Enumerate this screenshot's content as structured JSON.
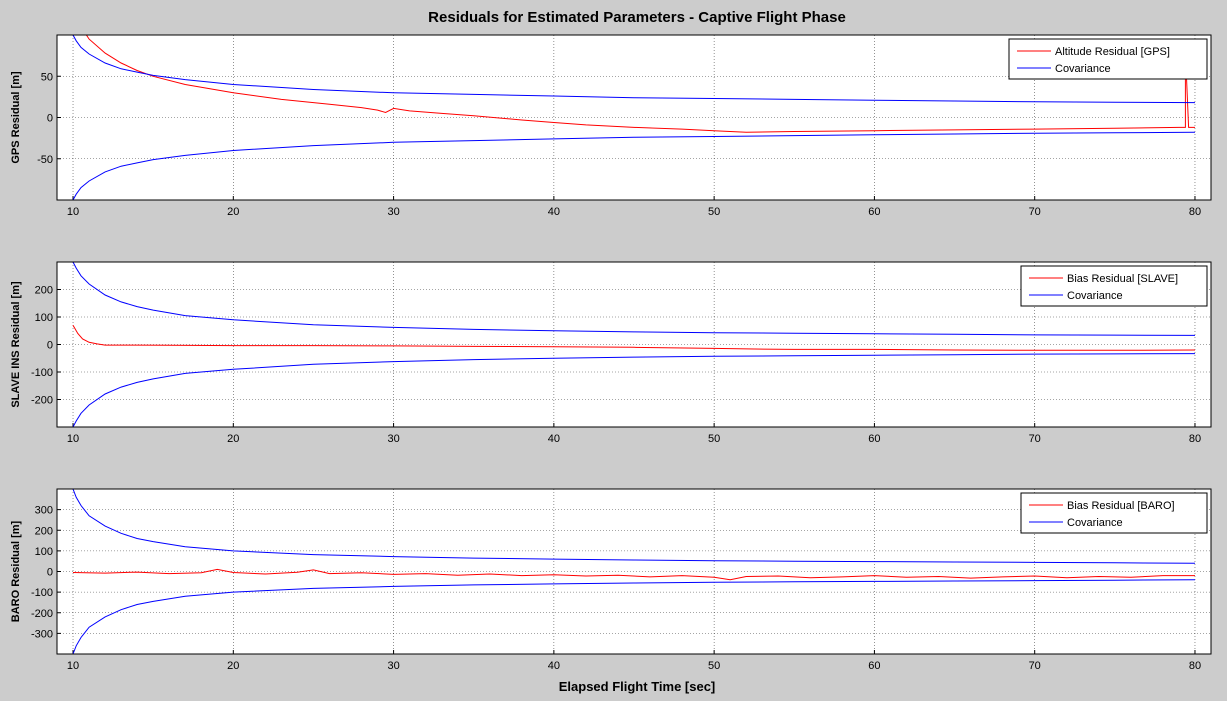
{
  "figure": {
    "title": "Residuals for Estimated Parameters - Captive Flight Phase",
    "xlabel": "Elapsed Flight Time [sec]"
  },
  "colors": {
    "background": "#cccccc",
    "residual": "#ff0000",
    "covariance": "#0000ff",
    "grid": "#b0b0b0"
  },
  "chart_data": [
    {
      "type": "line",
      "ylabel": "GPS Residual [m]",
      "xlim": [
        9,
        81
      ],
      "ylim": [
        -100,
        100
      ],
      "xticks": [
        10,
        20,
        30,
        40,
        50,
        60,
        70,
        80
      ],
      "yticks": [
        -50,
        0,
        50
      ],
      "grid": true,
      "legend_position": "top-right",
      "series": [
        {
          "name": "Altitude Residual [GPS]",
          "color": "#ff0000",
          "x": [
            10,
            10.5,
            11,
            12,
            13,
            14,
            15,
            17,
            20,
            23,
            26,
            28,
            29,
            29.5,
            30,
            31,
            33,
            35,
            38,
            40,
            42,
            45,
            48,
            50,
            52,
            55,
            60,
            65,
            70,
            75,
            79,
            79.4,
            79.4,
            79.6,
            80
          ],
          "y": [
            130,
            110,
            95,
            78,
            66,
            57,
            50,
            40,
            30,
            22,
            16,
            12,
            9,
            6,
            11,
            8,
            5,
            2,
            -3,
            -6,
            -9,
            -12,
            -14,
            -16,
            -18,
            -17,
            -16,
            -15,
            -14,
            -13,
            -12,
            -12,
            80,
            -12,
            -12
          ]
        },
        {
          "name": "Covariance",
          "color": "#0000ff",
          "x": [
            10,
            10.2,
            10.5,
            11,
            12,
            13,
            14,
            15,
            17,
            20,
            25,
            30,
            35,
            40,
            45,
            50,
            55,
            60,
            65,
            70,
            75,
            80
          ],
          "y": [
            100,
            93,
            85,
            77,
            66,
            59,
            55,
            51,
            46,
            40,
            34,
            30,
            28,
            26,
            24,
            23,
            22,
            21,
            20,
            19,
            18.5,
            18
          ]
        },
        {
          "name": "",
          "color": "#0000ff",
          "x": [
            10,
            10.2,
            10.5,
            11,
            12,
            13,
            14,
            15,
            17,
            20,
            25,
            30,
            35,
            40,
            45,
            50,
            55,
            60,
            65,
            70,
            75,
            80
          ],
          "y": [
            -100,
            -93,
            -85,
            -77,
            -66,
            -59,
            -55,
            -51,
            -46,
            -40,
            -34,
            -30,
            -28,
            -26,
            -24,
            -23,
            -22,
            -21,
            -20,
            -19,
            -18.5,
            -18
          ]
        }
      ]
    },
    {
      "type": "line",
      "ylabel": "SLAVE INS Residual [m]",
      "xlim": [
        9,
        81
      ],
      "ylim": [
        -300,
        300
      ],
      "xticks": [
        10,
        20,
        30,
        40,
        50,
        60,
        70,
        80
      ],
      "yticks": [
        -200,
        -100,
        0,
        100,
        200
      ],
      "grid": true,
      "legend_position": "top-right",
      "series": [
        {
          "name": "Bias Residual [SLAVE]",
          "color": "#ff0000",
          "x": [
            10,
            10.3,
            10.6,
            11,
            11.5,
            12,
            14,
            16,
            20,
            25,
            30,
            35,
            40,
            45,
            50,
            52,
            55,
            60,
            65,
            70,
            75,
            80
          ],
          "y": [
            70,
            40,
            20,
            8,
            2,
            -2,
            -2,
            -3,
            -4,
            -4,
            -5,
            -7,
            -8,
            -10,
            -14,
            -16,
            -18,
            -18,
            -20,
            -21,
            -21,
            -20
          ]
        },
        {
          "name": "Covariance",
          "color": "#0000ff",
          "x": [
            10,
            10.2,
            10.5,
            11,
            12,
            13,
            14,
            15,
            17,
            20,
            25,
            30,
            35,
            40,
            45,
            50,
            55,
            60,
            65,
            70,
            75,
            80
          ],
          "y": [
            300,
            278,
            250,
            220,
            180,
            155,
            138,
            125,
            105,
            90,
            72,
            62,
            55,
            50,
            46,
            43,
            41,
            39,
            37,
            35,
            34,
            33
          ]
        },
        {
          "name": "",
          "color": "#0000ff",
          "x": [
            10,
            10.2,
            10.5,
            11,
            12,
            13,
            14,
            15,
            17,
            20,
            25,
            30,
            35,
            40,
            45,
            50,
            55,
            60,
            65,
            70,
            75,
            80
          ],
          "y": [
            -300,
            -278,
            -250,
            -220,
            -180,
            -155,
            -138,
            -125,
            -105,
            -90,
            -72,
            -62,
            -55,
            -50,
            -46,
            -43,
            -41,
            -39,
            -37,
            -35,
            -34,
            -33
          ]
        }
      ]
    },
    {
      "type": "line",
      "ylabel": "BARO Residual [m]",
      "xlim": [
        9,
        81
      ],
      "ylim": [
        -400,
        400
      ],
      "xticks": [
        10,
        20,
        30,
        40,
        50,
        60,
        70,
        80
      ],
      "yticks": [
        -300,
        -200,
        -100,
        0,
        100,
        200,
        300
      ],
      "grid": true,
      "legend_position": "top-right",
      "series": [
        {
          "name": "Bias Residual [BARO]",
          "color": "#ff0000",
          "x": [
            10,
            12,
            14,
            16,
            18,
            19,
            20,
            22,
            24,
            25,
            26,
            28,
            30,
            32,
            34,
            36,
            38,
            40,
            42,
            44,
            46,
            48,
            50,
            51,
            52,
            54,
            56,
            58,
            60,
            62,
            64,
            66,
            68,
            70,
            72,
            74,
            76,
            78,
            80
          ],
          "y": [
            -5,
            -8,
            -3,
            -10,
            -6,
            10,
            -5,
            -12,
            -4,
            8,
            -10,
            -6,
            -14,
            -10,
            -18,
            -12,
            -20,
            -16,
            -22,
            -18,
            -26,
            -20,
            -28,
            -40,
            -24,
            -22,
            -30,
            -26,
            -20,
            -28,
            -24,
            -32,
            -26,
            -22,
            -30,
            -24,
            -28,
            -20,
            -20
          ]
        },
        {
          "name": "Covariance",
          "color": "#0000ff",
          "x": [
            10,
            10.2,
            10.5,
            11,
            12,
            13,
            14,
            15,
            17,
            20,
            25,
            30,
            35,
            40,
            45,
            50,
            55,
            60,
            65,
            70,
            75,
            80
          ],
          "y": [
            400,
            360,
            320,
            270,
            220,
            185,
            160,
            145,
            120,
            100,
            82,
            72,
            65,
            60,
            56,
            52,
            50,
            48,
            46,
            44,
            42,
            40
          ]
        },
        {
          "name": "",
          "color": "#0000ff",
          "x": [
            10,
            10.2,
            10.5,
            11,
            12,
            13,
            14,
            15,
            17,
            20,
            25,
            30,
            35,
            40,
            45,
            50,
            55,
            60,
            65,
            70,
            75,
            80
          ],
          "y": [
            -400,
            -360,
            -320,
            -270,
            -220,
            -185,
            -160,
            -145,
            -120,
            -100,
            -82,
            -72,
            -65,
            -60,
            -56,
            -52,
            -50,
            -48,
            -46,
            -44,
            -42,
            -40
          ]
        }
      ]
    }
  ]
}
